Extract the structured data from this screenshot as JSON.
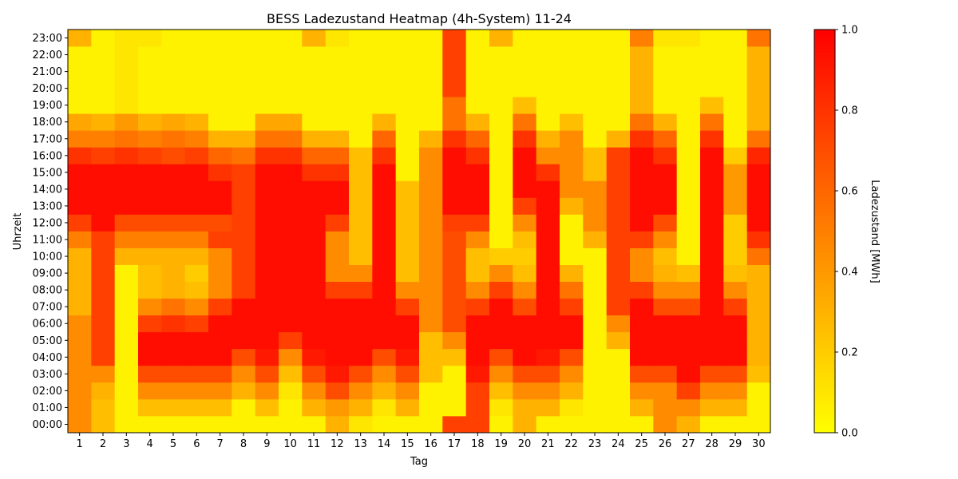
{
  "chart_data": {
    "type": "heatmap",
    "title": "BESS Ladezustand Heatmap (4h-System) 11-24",
    "xlabel": "Tag",
    "ylabel": "Uhrzeit",
    "colorbar_label": "Ladezustand [MWh]",
    "colorbar_ticks": [
      "0.0",
      "0.2",
      "0.4",
      "0.6",
      "0.8",
      "1.0"
    ],
    "vmin": 0.0,
    "vmax": 1.0,
    "colormap": [
      "#ffff00",
      "#ff0000"
    ],
    "x": [
      1,
      2,
      3,
      4,
      5,
      6,
      7,
      8,
      9,
      10,
      11,
      12,
      13,
      14,
      15,
      16,
      17,
      18,
      19,
      20,
      21,
      22,
      23,
      24,
      25,
      26,
      27,
      28,
      29,
      30
    ],
    "y": [
      "00:00",
      "01:00",
      "02:00",
      "03:00",
      "04:00",
      "05:00",
      "06:00",
      "07:00",
      "08:00",
      "09:00",
      "10:00",
      "11:00",
      "12:00",
      "13:00",
      "14:00",
      "15:00",
      "16:00",
      "17:00",
      "18:00",
      "19:00",
      "20:00",
      "21:00",
      "22:00",
      "23:00"
    ],
    "values": [
      [
        0.45,
        0.25,
        0.05,
        0.05,
        0.05,
        0.05,
        0.05,
        0.05,
        0.05,
        0.05,
        0.05,
        0.3,
        0.1,
        0.05,
        0.05,
        0.05,
        0.75,
        0.75,
        0.05,
        0.3,
        0.05,
        0.05,
        0.05,
        0.05,
        0.05,
        0.45,
        0.3,
        0.05,
        0.05,
        0.05
      ],
      [
        0.45,
        0.25,
        0.05,
        0.25,
        0.25,
        0.25,
        0.25,
        0.05,
        0.25,
        0.05,
        0.3,
        0.4,
        0.3,
        0.1,
        0.3,
        0.05,
        0.05,
        0.75,
        0.1,
        0.3,
        0.3,
        0.1,
        0.05,
        0.05,
        0.3,
        0.45,
        0.45,
        0.3,
        0.3,
        0.05
      ],
      [
        0.45,
        0.3,
        0.05,
        0.45,
        0.45,
        0.45,
        0.45,
        0.3,
        0.45,
        0.1,
        0.45,
        0.7,
        0.45,
        0.3,
        0.45,
        0.05,
        0.05,
        0.75,
        0.25,
        0.45,
        0.45,
        0.3,
        0.05,
        0.05,
        0.45,
        0.45,
        0.75,
        0.45,
        0.45,
        0.05
      ],
      [
        0.45,
        0.45,
        0.05,
        0.7,
        0.7,
        0.7,
        0.7,
        0.45,
        0.7,
        0.25,
        0.7,
        0.9,
        0.7,
        0.45,
        0.7,
        0.25,
        0.05,
        0.9,
        0.45,
        0.7,
        0.7,
        0.45,
        0.05,
        0.05,
        0.7,
        0.7,
        0.95,
        0.7,
        0.7,
        0.25
      ],
      [
        0.45,
        0.75,
        0.05,
        0.95,
        0.95,
        0.95,
        0.95,
        0.7,
        0.9,
        0.45,
        0.9,
        0.95,
        0.95,
        0.7,
        0.9,
        0.25,
        0.25,
        0.95,
        0.7,
        0.95,
        0.9,
        0.7,
        0.05,
        0.05,
        0.95,
        0.95,
        0.95,
        0.95,
        0.95,
        0.3
      ],
      [
        0.45,
        0.75,
        0.05,
        0.95,
        0.95,
        0.95,
        0.95,
        0.95,
        0.95,
        0.75,
        0.95,
        0.95,
        0.95,
        0.95,
        0.95,
        0.25,
        0.45,
        0.95,
        0.95,
        0.95,
        0.95,
        0.95,
        0.05,
        0.3,
        0.95,
        0.95,
        0.95,
        0.95,
        0.95,
        0.3
      ],
      [
        0.45,
        0.75,
        0.05,
        0.75,
        0.8,
        0.75,
        0.95,
        0.95,
        0.95,
        0.95,
        0.95,
        0.95,
        0.95,
        0.95,
        0.95,
        0.45,
        0.7,
        0.95,
        0.95,
        0.95,
        0.95,
        0.95,
        0.05,
        0.45,
        0.95,
        0.95,
        0.95,
        0.95,
        0.95,
        0.3
      ],
      [
        0.3,
        0.75,
        0.05,
        0.45,
        0.55,
        0.45,
        0.75,
        0.95,
        0.95,
        0.95,
        0.95,
        0.95,
        0.95,
        0.95,
        0.75,
        0.45,
        0.7,
        0.75,
        0.95,
        0.7,
        0.95,
        0.75,
        0.05,
        0.75,
        0.95,
        0.7,
        0.7,
        0.95,
        0.75,
        0.3
      ],
      [
        0.3,
        0.75,
        0.05,
        0.25,
        0.3,
        0.25,
        0.45,
        0.75,
        0.95,
        0.95,
        0.95,
        0.75,
        0.75,
        0.95,
        0.45,
        0.45,
        0.7,
        0.45,
        0.75,
        0.45,
        0.95,
        0.55,
        0.05,
        0.75,
        0.75,
        0.45,
        0.45,
        0.95,
        0.45,
        0.3
      ],
      [
        0.3,
        0.75,
        0.05,
        0.25,
        0.3,
        0.2,
        0.45,
        0.75,
        0.95,
        0.95,
        0.95,
        0.45,
        0.45,
        0.95,
        0.25,
        0.45,
        0.7,
        0.25,
        0.45,
        0.25,
        0.95,
        0.3,
        0.05,
        0.75,
        0.45,
        0.3,
        0.25,
        0.95,
        0.25,
        0.3
      ],
      [
        0.3,
        0.75,
        0.3,
        0.3,
        0.3,
        0.3,
        0.45,
        0.75,
        0.95,
        0.95,
        0.95,
        0.45,
        0.25,
        0.95,
        0.25,
        0.45,
        0.7,
        0.25,
        0.2,
        0.2,
        0.95,
        0.05,
        0.05,
        0.75,
        0.45,
        0.25,
        0.05,
        0.95,
        0.2,
        0.55
      ],
      [
        0.5,
        0.75,
        0.5,
        0.5,
        0.5,
        0.5,
        0.75,
        0.75,
        0.95,
        0.95,
        0.95,
        0.45,
        0.25,
        0.95,
        0.25,
        0.45,
        0.7,
        0.45,
        0.05,
        0.25,
        0.95,
        0.05,
        0.3,
        0.75,
        0.75,
        0.45,
        0.05,
        0.95,
        0.2,
        0.8
      ],
      [
        0.75,
        0.95,
        0.7,
        0.7,
        0.7,
        0.7,
        0.7,
        0.75,
        0.95,
        0.95,
        0.95,
        0.75,
        0.25,
        0.95,
        0.25,
        0.45,
        0.75,
        0.75,
        0.05,
        0.45,
        0.95,
        0.05,
        0.45,
        0.75,
        0.95,
        0.7,
        0.05,
        0.95,
        0.2,
        0.95
      ],
      [
        0.95,
        0.95,
        0.95,
        0.95,
        0.95,
        0.95,
        0.95,
        0.75,
        0.95,
        0.95,
        0.95,
        0.95,
        0.25,
        0.95,
        0.25,
        0.45,
        0.95,
        0.95,
        0.05,
        0.75,
        0.95,
        0.3,
        0.45,
        0.75,
        0.95,
        0.95,
        0.05,
        0.95,
        0.4,
        0.95
      ],
      [
        0.95,
        0.95,
        0.95,
        0.95,
        0.95,
        0.95,
        0.95,
        0.75,
        0.95,
        0.95,
        0.95,
        0.95,
        0.25,
        0.95,
        0.25,
        0.45,
        0.95,
        0.95,
        0.05,
        0.95,
        0.95,
        0.45,
        0.45,
        0.75,
        0.95,
        0.95,
        0.05,
        0.95,
        0.4,
        0.95
      ],
      [
        0.95,
        0.95,
        0.95,
        0.95,
        0.95,
        0.95,
        0.8,
        0.75,
        0.95,
        0.95,
        0.8,
        0.8,
        0.25,
        0.95,
        0.05,
        0.45,
        0.95,
        0.95,
        0.05,
        0.95,
        0.8,
        0.45,
        0.25,
        0.75,
        0.95,
        0.95,
        0.05,
        0.95,
        0.4,
        0.95
      ],
      [
        0.8,
        0.75,
        0.8,
        0.75,
        0.7,
        0.75,
        0.6,
        0.55,
        0.8,
        0.8,
        0.6,
        0.6,
        0.25,
        0.8,
        0.05,
        0.45,
        0.95,
        0.8,
        0.05,
        0.95,
        0.45,
        0.45,
        0.25,
        0.75,
        0.95,
        0.8,
        0.05,
        0.95,
        0.2,
        0.85
      ],
      [
        0.5,
        0.5,
        0.55,
        0.5,
        0.55,
        0.5,
        0.3,
        0.3,
        0.55,
        0.55,
        0.3,
        0.3,
        0.05,
        0.6,
        0.05,
        0.3,
        0.8,
        0.6,
        0.05,
        0.8,
        0.3,
        0.45,
        0.05,
        0.3,
        0.8,
        0.6,
        0.05,
        0.8,
        0.05,
        0.55
      ],
      [
        0.35,
        0.3,
        0.4,
        0.3,
        0.35,
        0.3,
        0.05,
        0.05,
        0.35,
        0.35,
        0.05,
        0.05,
        0.05,
        0.3,
        0.05,
        0.05,
        0.55,
        0.3,
        0.05,
        0.55,
        0.05,
        0.25,
        0.05,
        0.05,
        0.55,
        0.3,
        0.05,
        0.55,
        0.05,
        0.3
      ],
      [
        0.05,
        0.05,
        0.1,
        0.05,
        0.05,
        0.05,
        0.05,
        0.05,
        0.05,
        0.05,
        0.05,
        0.05,
        0.05,
        0.05,
        0.05,
        0.05,
        0.55,
        0.05,
        0.05,
        0.25,
        0.05,
        0.05,
        0.05,
        0.05,
        0.3,
        0.05,
        0.05,
        0.25,
        0.05,
        0.3
      ],
      [
        0.05,
        0.05,
        0.1,
        0.05,
        0.05,
        0.05,
        0.05,
        0.05,
        0.05,
        0.05,
        0.05,
        0.05,
        0.05,
        0.05,
        0.05,
        0.05,
        0.75,
        0.05,
        0.05,
        0.05,
        0.05,
        0.05,
        0.05,
        0.05,
        0.3,
        0.05,
        0.05,
        0.05,
        0.05,
        0.3
      ],
      [
        0.05,
        0.05,
        0.1,
        0.05,
        0.05,
        0.05,
        0.05,
        0.05,
        0.05,
        0.05,
        0.05,
        0.05,
        0.05,
        0.05,
        0.05,
        0.05,
        0.75,
        0.05,
        0.05,
        0.05,
        0.05,
        0.05,
        0.05,
        0.05,
        0.3,
        0.05,
        0.05,
        0.05,
        0.05,
        0.3
      ],
      [
        0.05,
        0.05,
        0.1,
        0.05,
        0.05,
        0.05,
        0.05,
        0.05,
        0.05,
        0.05,
        0.05,
        0.05,
        0.05,
        0.05,
        0.05,
        0.05,
        0.75,
        0.05,
        0.05,
        0.05,
        0.05,
        0.05,
        0.05,
        0.05,
        0.3,
        0.05,
        0.05,
        0.05,
        0.05,
        0.3
      ],
      [
        0.3,
        0.05,
        0.1,
        0.1,
        0.05,
        0.05,
        0.05,
        0.05,
        0.05,
        0.05,
        0.3,
        0.1,
        0.05,
        0.05,
        0.05,
        0.05,
        0.75,
        0.05,
        0.3,
        0.05,
        0.05,
        0.05,
        0.05,
        0.05,
        0.5,
        0.1,
        0.1,
        0.05,
        0.05,
        0.55
      ]
    ]
  }
}
